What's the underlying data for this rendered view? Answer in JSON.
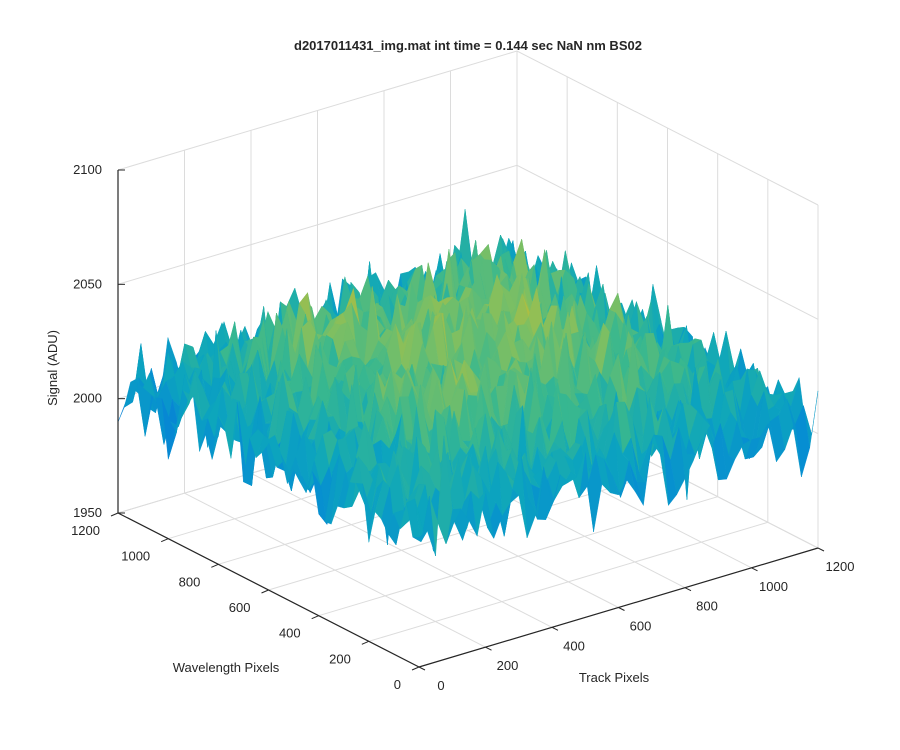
{
  "chart_data": {
    "type": "surface",
    "title": "d2017011431_img.mat int time = 0.144 sec  NaN nm BS02",
    "xlabel": "Track Pixels",
    "ylabel": "Wavelength Pixels",
    "zlabel": "Signal (ADU)",
    "xlim": [
      0,
      1200
    ],
    "ylim": [
      0,
      1200
    ],
    "zlim": [
      1950,
      2100
    ],
    "x_ticks": [
      "0",
      "200",
      "400",
      "600",
      "800",
      "1000",
      "1200"
    ],
    "y_ticks": [
      "0",
      "200",
      "400",
      "600",
      "800",
      "1000",
      "1200"
    ],
    "z_ticks": [
      "1950",
      "2000",
      "2050",
      "2100"
    ],
    "grid": true,
    "colormap": "parula",
    "surface_summary": {
      "approx_mean": 2025,
      "approx_min": 1972,
      "approx_max": 2078,
      "edge_level_front": 2005,
      "center_level": 2035
    }
  }
}
